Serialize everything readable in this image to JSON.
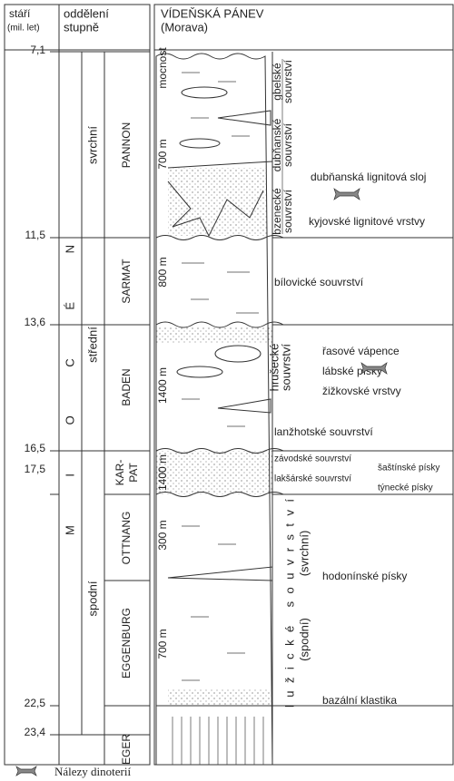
{
  "header": {
    "age": [
      "stáří",
      "(mil. let)"
    ],
    "division": [
      "oddělení",
      "stupně"
    ],
    "basin": [
      "VÍDEŇSKÁ PÁNEV",
      "(Morava)"
    ]
  },
  "ages": [
    "7,1",
    "11,5",
    "13,6",
    "16,5",
    "17,5",
    "22,5",
    "23,4"
  ],
  "epoch": "MIOCÉN",
  "subepochs": [
    "svrchní",
    "střední",
    "spodní"
  ],
  "stages": [
    [
      "PANNON"
    ],
    [
      "SARMAT"
    ],
    [
      "BADEN"
    ],
    [
      "KAR-",
      "PAT"
    ],
    [
      "OTTNANG"
    ],
    [
      "EGGENBURG"
    ],
    [
      "EGER"
    ]
  ],
  "thickness": [
    "mocnost",
    "700 m",
    "800 m",
    "1400 m",
    "1400 m",
    "300 m",
    "700 m"
  ],
  "formations": [
    [
      "gbelské",
      "souvrství"
    ],
    [
      "dubňanské",
      "souvrství"
    ],
    [
      "bzenecké",
      "souvrství"
    ],
    [
      "hrušecké",
      "souvrství"
    ],
    [
      "lužické souvrství",
      "(svrchní)"
    ],
    [
      "(spodní)"
    ]
  ],
  "labels": [
    "dubňanská lignitová sloj",
    "kyjovské lignitové vrstvy",
    "bílovické souvrství",
    "řasové vápence",
    "lábské písky",
    "žižkovské vrstvy",
    "lanžhotské souvrství",
    "závodské souvrství",
    "lakšárské souvrství",
    "šaštínské písky",
    "týnecké písky",
    "hodonínské písky",
    "bazální klastika"
  ],
  "legend": "Nálezy dinoterií"
}
